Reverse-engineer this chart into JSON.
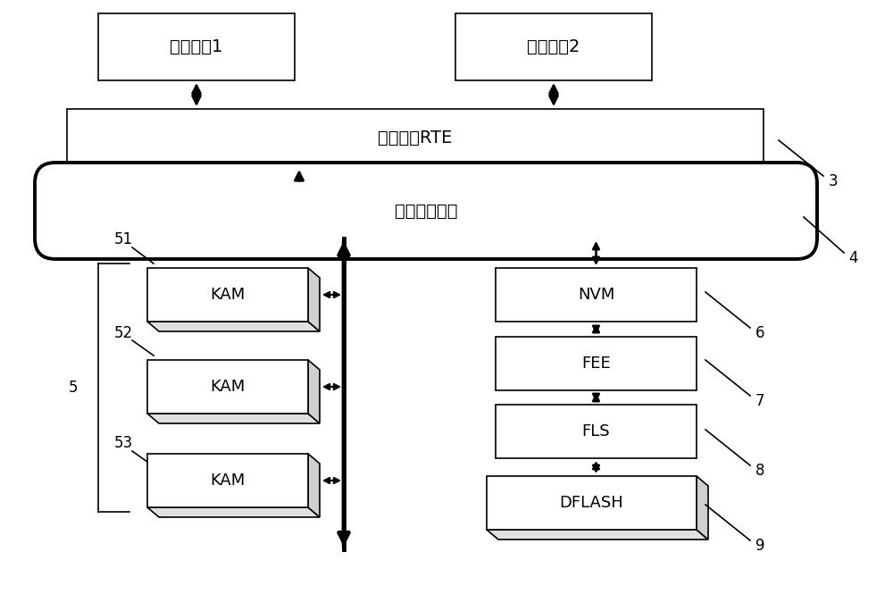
{
  "app1_label": "应用组件1",
  "app2_label": "应用组件2",
  "rte_label": "实时环境RTE",
  "mmu_label": "内存管理单元",
  "kam_label": "KAM",
  "nvm_label": "NVM",
  "fee_label": "FEE",
  "fls_label": "FLS",
  "dflash_label": "DFLASH",
  "label_3": "3",
  "label_4": "4",
  "label_5": "5",
  "label_51": "51",
  "label_52": "52",
  "label_53": "53",
  "label_6": "6",
  "label_7": "7",
  "label_8": "8",
  "label_9": "9"
}
